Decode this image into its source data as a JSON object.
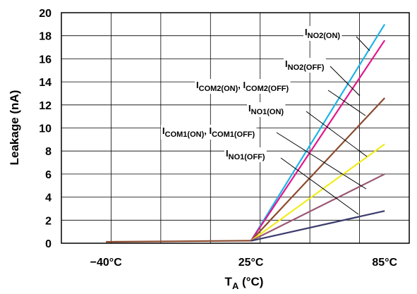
{
  "chart_data": {
    "type": "line",
    "title": "",
    "xlabel": {
      "main": "T",
      "sub": "A",
      "rest": " (°C)"
    },
    "ylabel": "Leakage (nA)",
    "categories": [
      "−40°C",
      "25°C",
      "85°C"
    ],
    "x": [
      -40,
      25,
      85
    ],
    "ylim": [
      0,
      20
    ],
    "yticks": [
      "0",
      "2",
      "4",
      "6",
      "8",
      "10",
      "12",
      "14",
      "16",
      "18",
      "20"
    ],
    "grid": true,
    "series": [
      {
        "name": "NO2(ON)",
        "color": "#1fb3e8",
        "x": [
          25,
          85
        ],
        "values": [
          0.2,
          19.0
        ]
      },
      {
        "name": "NO2(OFF)",
        "color": "#e0188c",
        "x": [
          25,
          85
        ],
        "values": [
          0.2,
          17.6
        ]
      },
      {
        "name": "COM2(ON), COM2(OFF)",
        "color": "#8b4a2e",
        "x": [
          25,
          85
        ],
        "values": [
          0.2,
          12.6
        ]
      },
      {
        "name": "NO1(ON)",
        "color": "#f2ec1c",
        "x": [
          25,
          85
        ],
        "values": [
          0.2,
          8.6
        ]
      },
      {
        "name": "COM1(ON), COM1(OFF)",
        "color": "#9a5a76",
        "x": [
          25,
          85
        ],
        "values": [
          0.2,
          6.0
        ]
      },
      {
        "name": "NO1(OFF)",
        "color": "#3c3c6e",
        "x": [
          25,
          85
        ],
        "values": [
          0.2,
          2.8
        ]
      },
      {
        "name": "baseline",
        "color": "#8b4a2e",
        "x": [
          -40,
          25
        ],
        "values": [
          0.12,
          0.22
        ]
      }
    ],
    "annotations": [
      {
        "parts": [
          [
            "I",
            ""
          ],
          [
            "NO2(ON)",
            "sub"
          ]
        ]
      },
      {
        "parts": [
          [
            "I",
            ""
          ],
          [
            "NO2(OFF)",
            "sub"
          ]
        ]
      },
      {
        "parts": [
          [
            "I",
            ""
          ],
          [
            "COM2(ON)",
            "sub"
          ],
          [
            ", I",
            ""
          ],
          [
            "COM2(OFF)",
            "sub"
          ]
        ]
      },
      {
        "parts": [
          [
            "I",
            ""
          ],
          [
            "NO1(ON)",
            "sub"
          ]
        ]
      },
      {
        "parts": [
          [
            "I",
            ""
          ],
          [
            "COM1(ON)",
            "sub"
          ],
          [
            ", I",
            ""
          ],
          [
            "COM1(OFF)",
            "sub"
          ]
        ]
      },
      {
        "parts": [
          [
            "I",
            ""
          ],
          [
            "NO1(OFF)",
            "sub"
          ]
        ]
      }
    ]
  }
}
